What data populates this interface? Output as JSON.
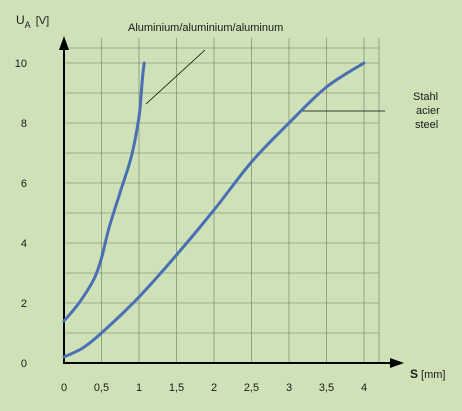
{
  "colors": {
    "background": "#cfe2b7",
    "grid": "#6b7a63",
    "axis": "#000000",
    "curve": "#4a6fb5"
  },
  "chart_data": {
    "type": "line",
    "xlabel": {
      "symbol": "S",
      "unit": "[mm]"
    },
    "ylabel": {
      "symbol": "U",
      "subscript": "A",
      "unit": "[V]"
    },
    "xlim": [
      0,
      4
    ],
    "ylim": [
      0,
      10
    ],
    "grid": true,
    "x_ticks": [
      "0",
      "0,5",
      "1",
      "1,5",
      "2",
      "2,5",
      "3",
      "3,5",
      "4"
    ],
    "y_ticks": [
      "0",
      "2",
      "4",
      "6",
      "8",
      "10"
    ],
    "series": [
      {
        "name": "Aluminium/aluminium/aluminum",
        "x": [
          0,
          0.2,
          0.4,
          0.5,
          0.6,
          0.75,
          0.9,
          1.0,
          1.03,
          1.05,
          1.07
        ],
        "y": [
          1.4,
          2.0,
          2.8,
          3.5,
          4.5,
          5.7,
          6.9,
          8.2,
          9.0,
          9.6,
          10.0
        ]
      },
      {
        "name_lines": [
          "Stahl",
          "acier",
          "steel"
        ],
        "x": [
          0,
          0.25,
          0.5,
          1.0,
          1.5,
          2.0,
          2.5,
          3.0,
          3.5,
          4.0
        ],
        "y": [
          0.2,
          0.5,
          1.0,
          2.2,
          3.6,
          5.1,
          6.7,
          8.0,
          9.2,
          10.0
        ]
      }
    ]
  }
}
